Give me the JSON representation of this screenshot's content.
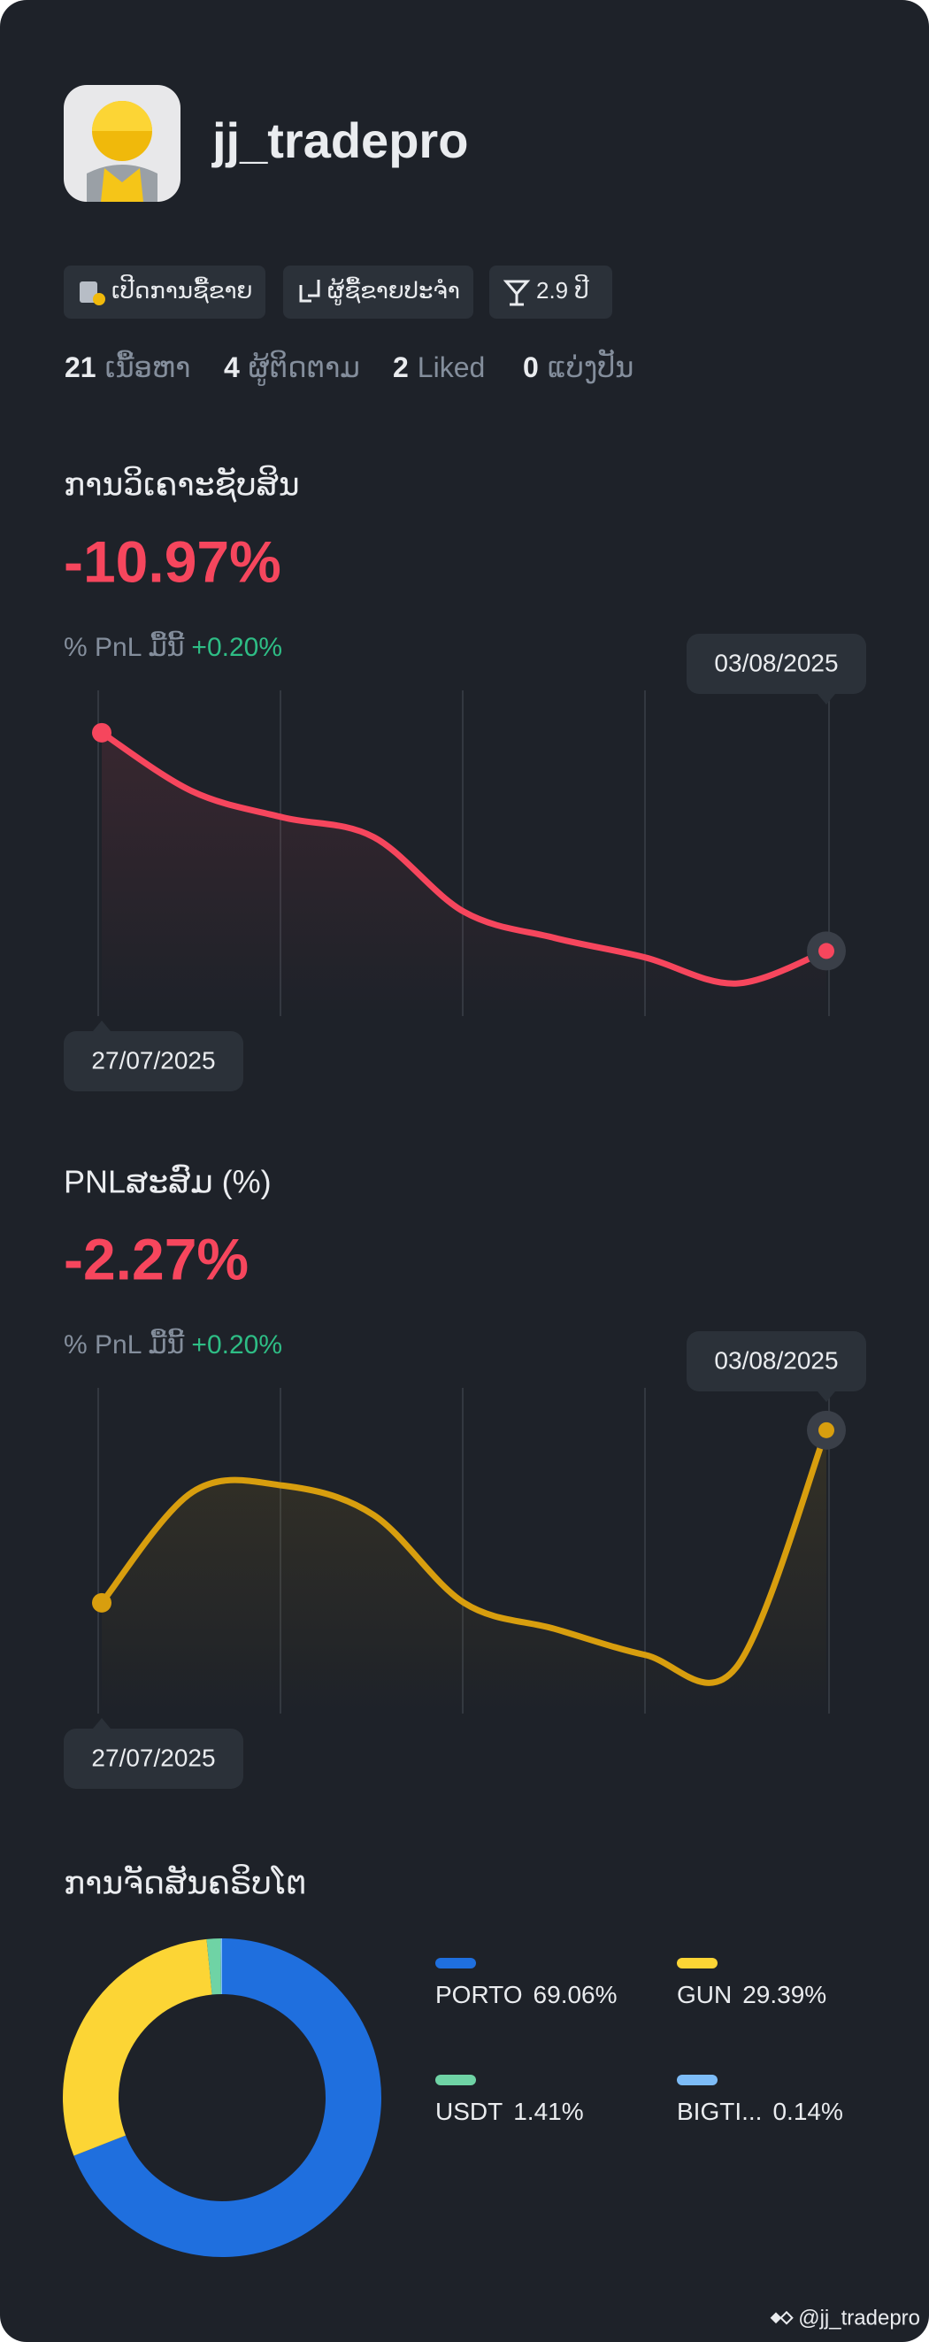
{
  "profile": {
    "username": "jj_tradepro",
    "badges": [
      "ເປີດການຊື້ຂາຍ",
      "ຜູ້ຊື້ຂາຍປະຈຳ",
      "2.9 ປີ"
    ],
    "stats": [
      {
        "count": "21",
        "label": "ເນື້ອຫາ"
      },
      {
        "count": "4",
        "label": "ຜູ້ຕິດຕາມ"
      },
      {
        "count": "2",
        "label": "Liked"
      },
      {
        "count": "0",
        "label": "ແບ່ງປັນ"
      }
    ]
  },
  "charts": [
    {
      "type": "line",
      "title": "ການວິເຄາະຊັບສິນ",
      "headline": "-10.97%",
      "pnl_today_label": "% PnL ມື້ນີ້",
      "pnl_today": "+0.20%",
      "start_date": "27/07/2025",
      "end_date": "03/08/2025",
      "color": "#f6465d",
      "ylim": [
        0,
        100
      ],
      "values": [
        87,
        69,
        61,
        55,
        32,
        24,
        18,
        10,
        20
      ]
    },
    {
      "type": "line",
      "title": "PNLສະສົມ (%)",
      "headline": "-2.27%",
      "pnl_today_label": "% PnL ມື້ນີ້",
      "pnl_today": "+0.20%",
      "start_date": "27/07/2025",
      "end_date": "03/08/2025",
      "color": "#d89e0e",
      "ylim": [
        0,
        100
      ],
      "values": [
        34,
        68,
        70,
        61,
        34,
        26,
        18,
        14,
        87
      ]
    },
    {
      "type": "donut",
      "title": "ການຈັດສັນຄຣິບໂຕ",
      "categories": [
        "PORTO",
        "GUN",
        "USDT",
        "BIGTI..."
      ],
      "values": [
        69.06,
        29.39,
        1.41,
        0.14
      ],
      "value_labels": [
        "69.06%",
        "29.39%",
        "1.41%",
        "0.14%"
      ],
      "colors": [
        "#1f6fde",
        "#fcd535",
        "#6fd3a5",
        "#7dbcf7"
      ]
    }
  ],
  "watermark": "@jj_tradepro"
}
